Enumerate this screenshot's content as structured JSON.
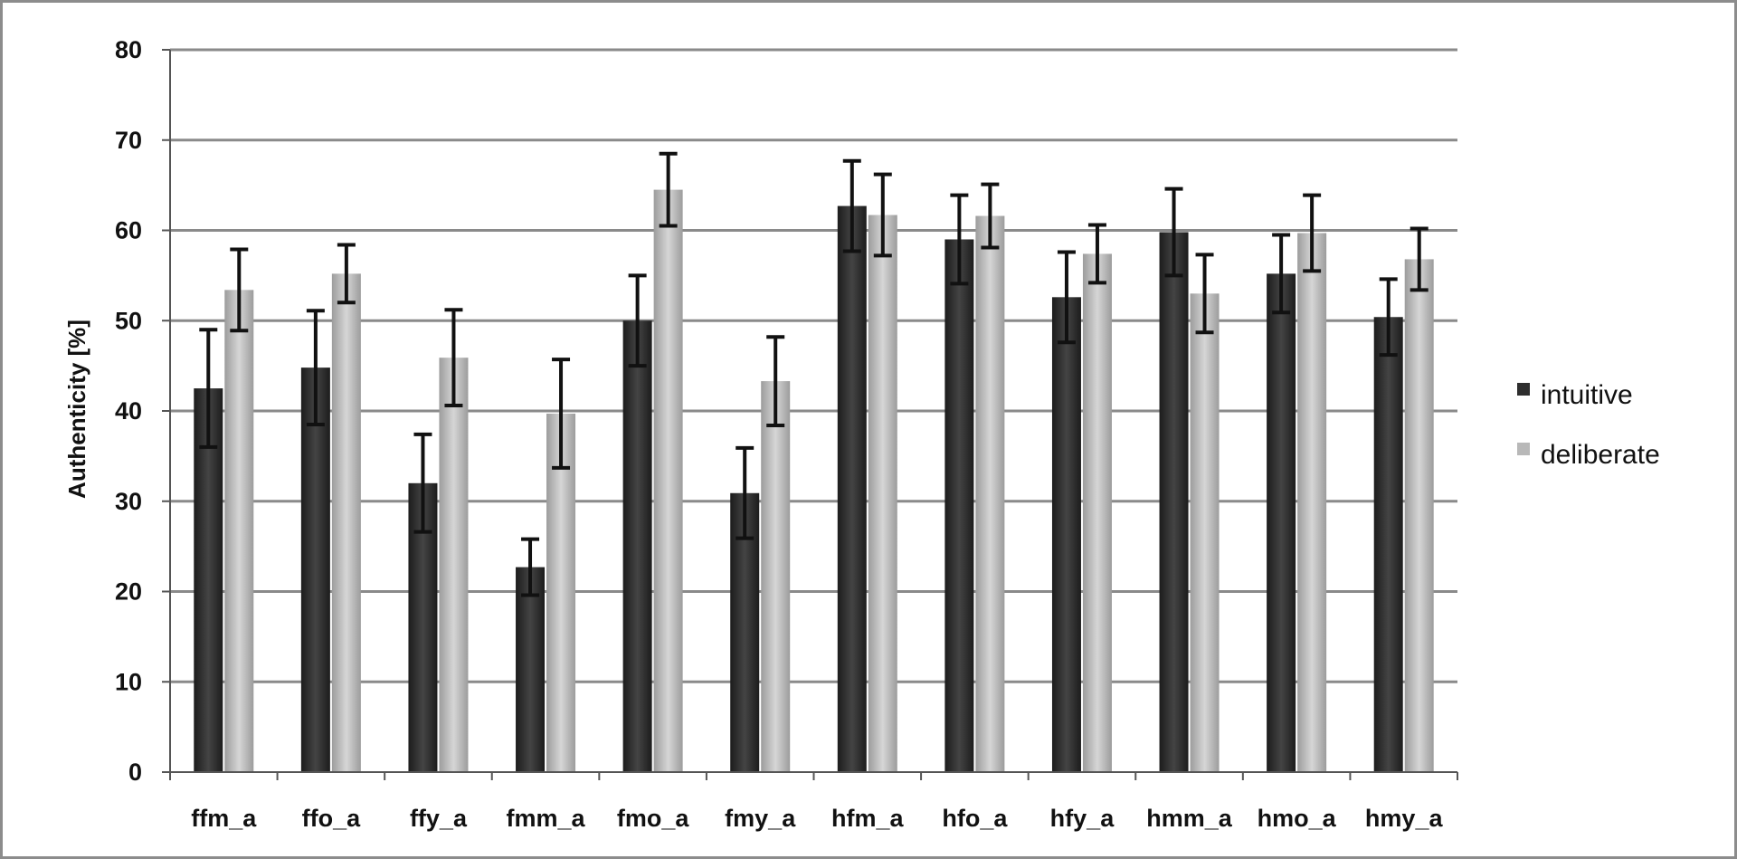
{
  "chart_data": {
    "type": "bar",
    "title": "",
    "xlabel": "",
    "ylabel": "Authenticity [%]",
    "ylim": [
      0,
      80
    ],
    "yticks": [
      0,
      10,
      20,
      30,
      40,
      50,
      60,
      70,
      80
    ],
    "grid": true,
    "legend_position": "right",
    "categories": [
      "ffm_a",
      "ffo_a",
      "ffy_a",
      "fmm_a",
      "fmo_a",
      "fmy_a",
      "hfm_a",
      "hfo_a",
      "hfy_a",
      "hmm_a",
      "hmo_a",
      "hmy_a"
    ],
    "series": [
      {
        "name": "intuitive",
        "color": "#2e2e2e",
        "values": [
          42.5,
          44.8,
          32.0,
          22.7,
          50.0,
          30.9,
          62.7,
          59.0,
          52.6,
          59.8,
          55.2,
          50.4
        ],
        "error": [
          6.5,
          6.3,
          5.4,
          3.1,
          5.0,
          5.0,
          5.0,
          4.9,
          5.0,
          4.8,
          4.3,
          4.2
        ]
      },
      {
        "name": "deliberate",
        "color": "#b8b8b8",
        "values": [
          53.4,
          55.2,
          45.9,
          39.7,
          64.5,
          43.3,
          61.7,
          61.6,
          57.4,
          53.0,
          59.7,
          56.8
        ],
        "error": [
          4.5,
          3.2,
          5.3,
          6.0,
          4.0,
          4.9,
          4.5,
          3.5,
          3.2,
          4.3,
          4.2,
          3.4
        ]
      }
    ]
  }
}
